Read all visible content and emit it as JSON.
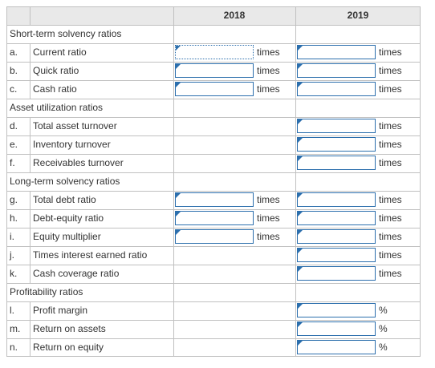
{
  "header": {
    "col_2018": "2018",
    "col_2019": "2019"
  },
  "sections": [
    {
      "title": "Short-term solvency ratios",
      "rows": [
        {
          "letter": "a.",
          "label": "Current ratio",
          "unit2018": "times",
          "unit2019": "times",
          "has2018": true,
          "has2019": true
        },
        {
          "letter": "b.",
          "label": "Quick ratio",
          "unit2018": "times",
          "unit2019": "times",
          "has2018": true,
          "has2019": true
        },
        {
          "letter": "c.",
          "label": "Cash ratio",
          "unit2018": "times",
          "unit2019": "times",
          "has2018": true,
          "has2019": true
        }
      ]
    },
    {
      "title": "Asset utilization ratios",
      "rows": [
        {
          "letter": "d.",
          "label": "Total asset turnover",
          "unit2018": "",
          "unit2019": "times",
          "has2018": false,
          "has2019": true
        },
        {
          "letter": "e.",
          "label": "Inventory turnover",
          "unit2018": "",
          "unit2019": "times",
          "has2018": false,
          "has2019": true
        },
        {
          "letter": "f.",
          "label": "Receivables turnover",
          "unit2018": "",
          "unit2019": "times",
          "has2018": false,
          "has2019": true
        }
      ]
    },
    {
      "title": "Long-term solvency ratios",
      "rows": [
        {
          "letter": "g.",
          "label": "Total debt ratio",
          "unit2018": "times",
          "unit2019": "times",
          "has2018": true,
          "has2019": true
        },
        {
          "letter": "h.",
          "label": "Debt-equity ratio",
          "unit2018": "times",
          "unit2019": "times",
          "has2018": true,
          "has2019": true
        },
        {
          "letter": "i.",
          "label": "Equity multiplier",
          "unit2018": "times",
          "unit2019": "times",
          "has2018": true,
          "has2019": true
        },
        {
          "letter": "j.",
          "label": "Times interest earned ratio",
          "unit2018": "",
          "unit2019": "times",
          "has2018": false,
          "has2019": true
        },
        {
          "letter": "k.",
          "label": "Cash coverage ratio",
          "unit2018": "",
          "unit2019": "times",
          "has2018": false,
          "has2019": true
        }
      ]
    },
    {
      "title": "Profitability ratios",
      "rows": [
        {
          "letter": "l.",
          "label": "Profit margin",
          "unit2018": "",
          "unit2019": "%",
          "has2018": false,
          "has2019": true
        },
        {
          "letter": "m.",
          "label": "Return on assets",
          "unit2018": "",
          "unit2019": "%",
          "has2018": false,
          "has2019": true
        },
        {
          "letter": "n.",
          "label": "Return on equity",
          "unit2018": "",
          "unit2019": "%",
          "has2018": false,
          "has2019": true
        }
      ]
    }
  ],
  "colors": {
    "input_border": "#2c6fad",
    "grid": "#c0c0c0",
    "header_bg": "#e9e9e9"
  }
}
